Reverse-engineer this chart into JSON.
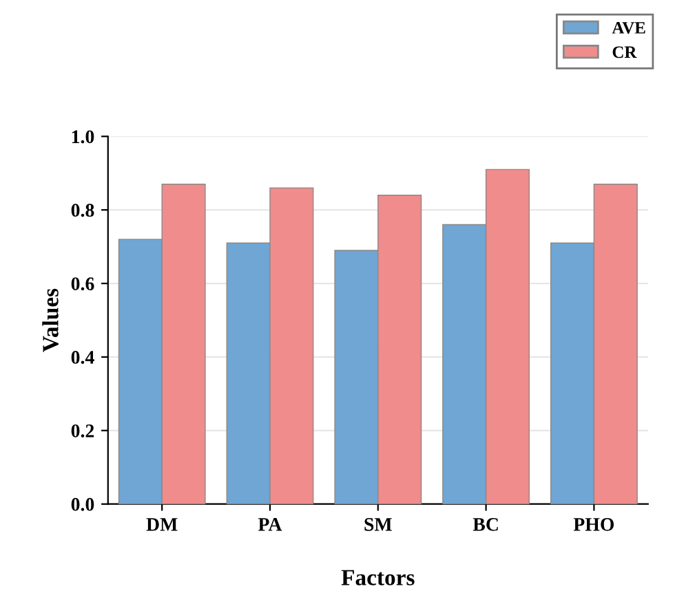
{
  "chart_data": {
    "type": "bar",
    "xlabel": "Factors",
    "ylabel": "Values",
    "categories": [
      "DM",
      "PA",
      "SM",
      "BC",
      "PHO"
    ],
    "series": [
      {
        "name": "AVE",
        "color": "#6fa6d4",
        "values": [
          0.72,
          0.71,
          0.69,
          0.76,
          0.71
        ]
      },
      {
        "name": "CR",
        "color": "#f08c8c",
        "values": [
          0.87,
          0.86,
          0.84,
          0.91,
          0.87
        ]
      }
    ],
    "ylim": [
      0,
      1.0
    ],
    "yticks": [
      {
        "value": 0,
        "label": "0.0"
      },
      0.2,
      0.4,
      0.6,
      0.8,
      {
        "value": 1,
        "label": "1.0"
      }
    ],
    "grid": "y",
    "legend": "top right"
  }
}
